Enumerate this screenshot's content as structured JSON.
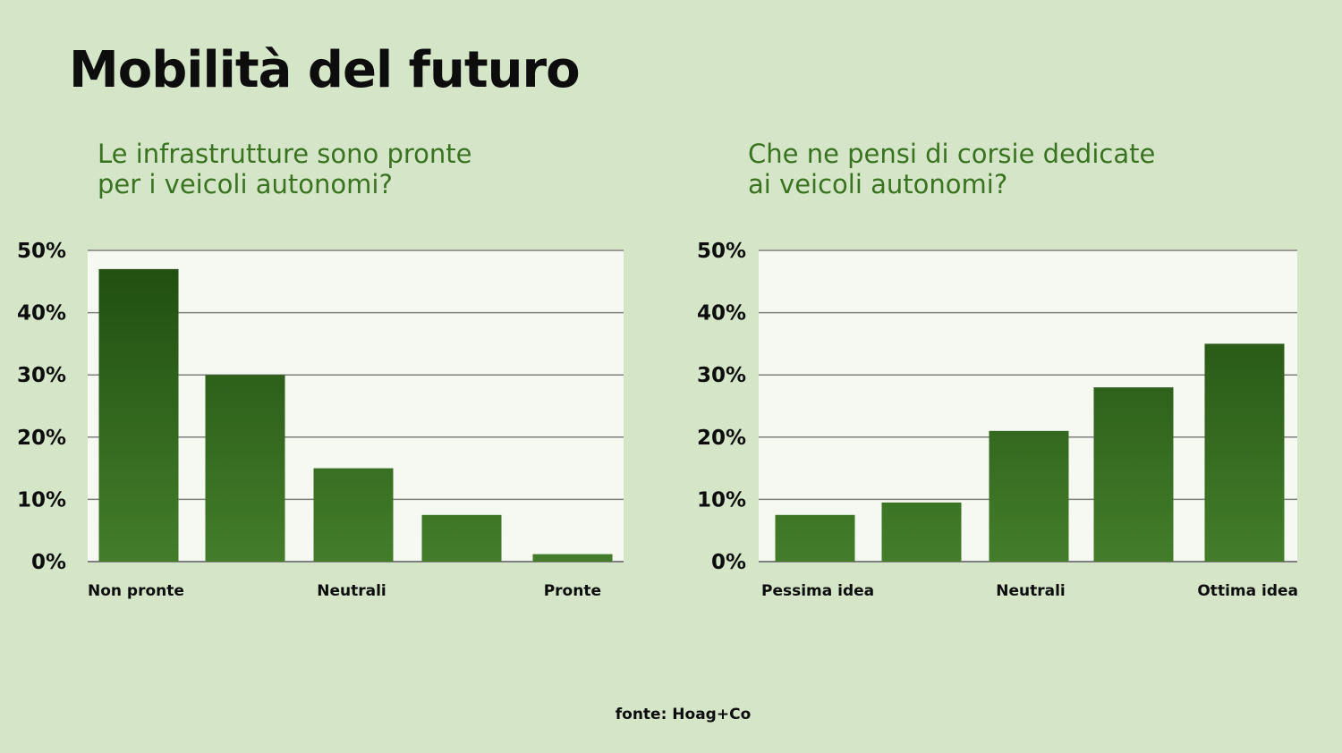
{
  "title": "Mobilità del futuro",
  "source": "fonte: Hoag+Co",
  "colors": {
    "background": "#d4e6c7",
    "plot_area": "#f5f9f1",
    "gridline": "#7f7f7f",
    "bar_top": "#1f4d10",
    "bar_bottom": "#437d2a",
    "subtitle": "#3b7222"
  },
  "chart_data": [
    {
      "type": "bar",
      "title_lines": [
        "Le infrastrutture sono pronte",
        "per i veicoli autonomi?"
      ],
      "categories": [
        "Non pronte",
        "",
        "Neutrali",
        "",
        "Pronte"
      ],
      "values": [
        47,
        30,
        15,
        7.5,
        1.2
      ],
      "ylim": [
        0,
        50
      ],
      "yticks": [
        "0%",
        "10%",
        "20%",
        "30%",
        "40%",
        "50%"
      ],
      "grid": true
    },
    {
      "type": "bar",
      "title_lines": [
        "Che ne pensi di corsie dedicate",
        "ai veicoli autonomi?"
      ],
      "categories": [
        "Pessima idea",
        "",
        "Neutrali",
        "",
        "Ottima idea"
      ],
      "values": [
        7.5,
        9.5,
        21,
        28,
        35
      ],
      "ylim": [
        0,
        50
      ],
      "yticks": [
        "0%",
        "10%",
        "20%",
        "30%",
        "40%",
        "50%"
      ],
      "grid": true
    }
  ]
}
